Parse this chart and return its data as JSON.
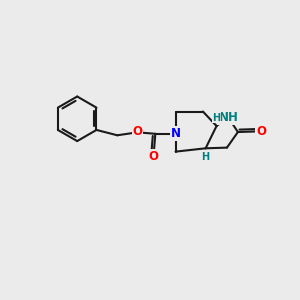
{
  "background_color": "#ebebeb",
  "bond_color": "#1a1a1a",
  "N_color": "#0000ff",
  "NH_color": "#008080",
  "O_color": "#ff0000",
  "H_color": "#008080",
  "line_width": 1.5,
  "font_size_atom": 8.5,
  "font_size_H": 7.0,
  "fig_width": 3.0,
  "fig_height": 3.0,
  "dpi": 100,
  "xlim": [
    0,
    10
  ],
  "ylim": [
    0,
    10
  ]
}
